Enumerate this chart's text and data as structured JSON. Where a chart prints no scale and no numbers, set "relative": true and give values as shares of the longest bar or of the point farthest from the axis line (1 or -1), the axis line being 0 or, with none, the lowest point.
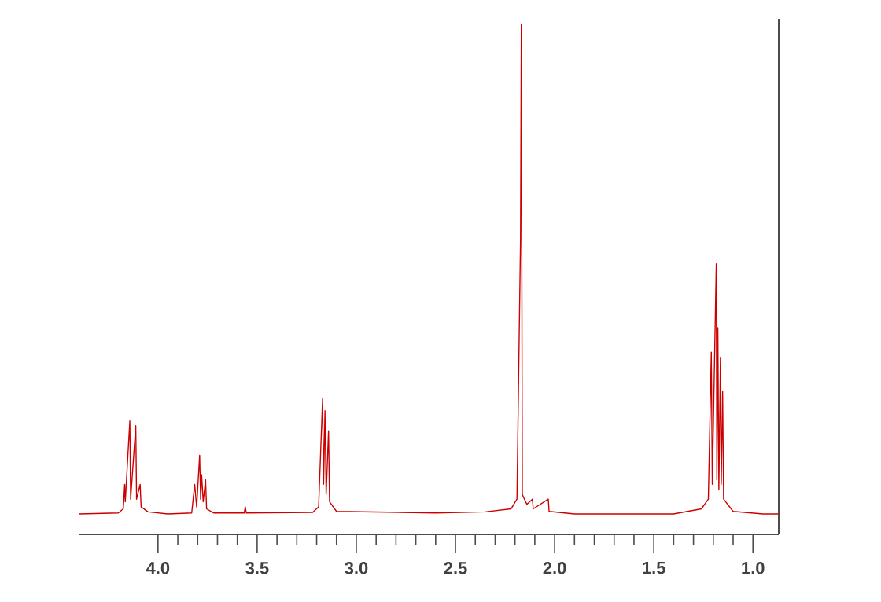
{
  "chart_data": {
    "type": "line",
    "relative": true,
    "xlim": [
      4.4,
      0.87
    ],
    "xticks": [
      {
        "value": 4.0,
        "label": "4.0"
      },
      {
        "value": 3.5,
        "label": "3.5"
      },
      {
        "value": 3.0,
        "label": "3.0"
      },
      {
        "value": 2.5,
        "label": "2.5"
      },
      {
        "value": 2.0,
        "label": "2.0"
      },
      {
        "value": 1.5,
        "label": "1.5"
      },
      {
        "value": 1.0,
        "label": "1.0"
      }
    ],
    "tick_labels": "x",
    "marker": "none",
    "line_style": "solid",
    "series": [
      {
        "color": "#cc0000",
        "x": [
          4.4,
          4.2,
          4.175,
          4.168,
          4.165,
          4.142,
          4.138,
          4.112,
          4.108,
          4.09,
          4.085,
          4.05,
          3.95,
          3.83,
          3.815,
          3.805,
          3.79,
          3.785,
          3.78,
          3.772,
          3.76,
          3.755,
          3.72,
          3.565,
          3.56,
          3.555,
          3.22,
          3.19,
          3.17,
          3.165,
          3.158,
          3.152,
          3.14,
          3.135,
          3.1,
          2.6,
          2.35,
          2.22,
          2.19,
          2.172,
          2.168,
          2.163,
          2.14,
          2.112,
          2.108,
          2.032,
          2.028,
          1.9,
          1.4,
          1.26,
          1.225,
          1.21,
          1.205,
          1.185,
          1.182,
          1.177,
          1.172,
          1.164,
          1.16,
          1.153,
          1.148,
          1.1,
          0.95,
          0.87
        ],
        "values": [
          0.04,
          0.042,
          0.05,
          0.098,
          0.064,
          0.222,
          0.069,
          0.213,
          0.069,
          0.098,
          0.054,
          0.044,
          0.04,
          0.042,
          0.098,
          0.054,
          0.155,
          0.069,
          0.117,
          0.064,
          0.107,
          0.05,
          0.042,
          0.042,
          0.054,
          0.042,
          0.043,
          0.054,
          0.266,
          0.098,
          0.242,
          0.078,
          0.203,
          0.064,
          0.045,
          0.042,
          0.044,
          0.05,
          0.069,
          0.578,
          1.0,
          0.078,
          0.059,
          0.069,
          0.05,
          0.069,
          0.045,
          0.04,
          0.04,
          0.05,
          0.069,
          0.357,
          0.098,
          0.53,
          0.107,
          0.405,
          0.088,
          0.347,
          0.098,
          0.28,
          0.069,
          0.045,
          0.04,
          0.04
        ]
      }
    ]
  }
}
